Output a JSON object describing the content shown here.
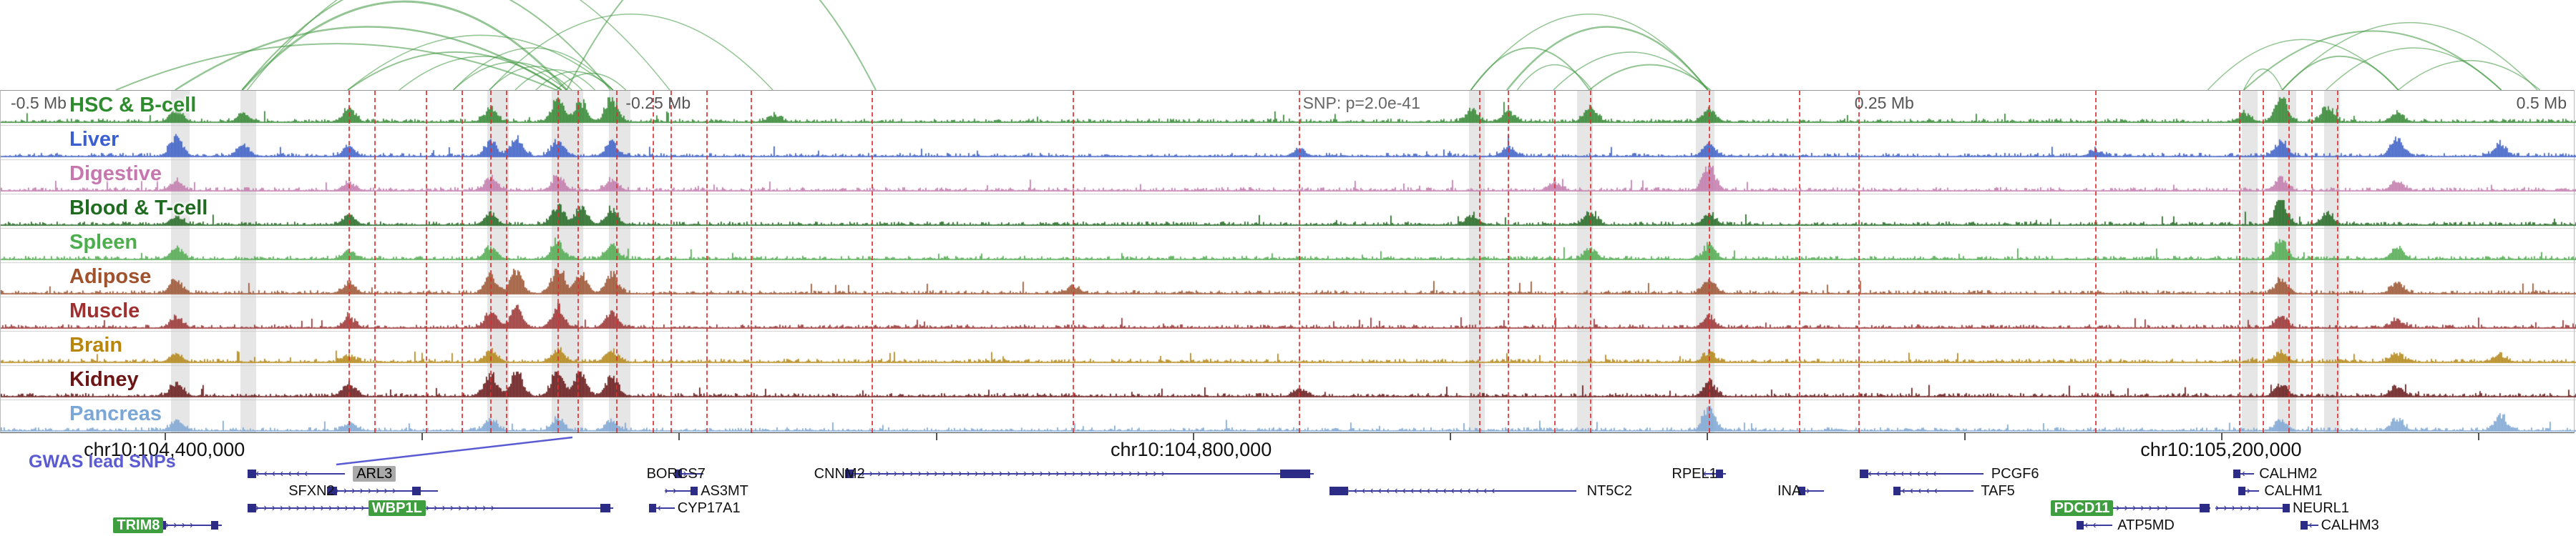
{
  "chart_data": {
    "type": "genome_browser_tracks",
    "region": {
      "chrom": "chr10",
      "window": "chr10:104,300,000-105,300,000"
    },
    "header": {
      "left": "-0.5 Mb",
      "q1": "-0.25 Mb",
      "snp": "SNP: p=2.0e-41",
      "q3": "0.25 Mb",
      "right": "0.5 Mb"
    },
    "axis": {
      "labels": [
        {
          "text": "chr10:104,400,000",
          "x": 0.0638
        },
        {
          "text": "chr10:104,800,000",
          "x": 0.4624
        },
        {
          "text": "chr10:105,200,000",
          "x": 0.8622
        }
      ],
      "minor_ticks": [
        0.0638,
        0.1636,
        0.2634,
        0.3632,
        0.463,
        0.5628,
        0.6626,
        0.7624,
        0.8622,
        0.962
      ]
    },
    "gwas_label": "GWAS lead SNPs",
    "colors": {
      "arc": "#3c963c",
      "snp_line": "#e03030",
      "highlight": "rgba(130,130,130,0.20)",
      "gene": "#3c3c9e",
      "gwas": "#5a5ad2",
      "gene_highlight_box": "#3f9e3f"
    },
    "tracks": [
      {
        "name": "HSC & B-cell",
        "color": "#2e8b2e",
        "seed": 101,
        "peaks": [
          [
            0.068,
            0.45
          ],
          [
            0.094,
            0.3
          ],
          [
            0.135,
            0.5
          ],
          [
            0.19,
            0.5
          ],
          [
            0.216,
            0.85
          ],
          [
            0.225,
            0.7
          ],
          [
            0.237,
            0.9
          ],
          [
            0.3,
            0.25
          ],
          [
            0.571,
            0.45
          ],
          [
            0.585,
            0.35
          ],
          [
            0.617,
            0.55
          ],
          [
            0.663,
            0.5
          ],
          [
            0.871,
            0.3
          ],
          [
            0.885,
            1.0
          ],
          [
            0.903,
            0.5
          ],
          [
            0.93,
            0.35
          ]
        ]
      },
      {
        "name": "Liver",
        "color": "#3a5fd0",
        "seed": 202,
        "peaks": [
          [
            0.068,
            0.75
          ],
          [
            0.094,
            0.4
          ],
          [
            0.135,
            0.35
          ],
          [
            0.19,
            0.55
          ],
          [
            0.2,
            0.7
          ],
          [
            0.216,
            0.6
          ],
          [
            0.237,
            0.5
          ],
          [
            0.504,
            0.25
          ],
          [
            0.585,
            0.35
          ],
          [
            0.663,
            0.45
          ],
          [
            0.813,
            0.2
          ],
          [
            0.885,
            0.55
          ],
          [
            0.93,
            0.65
          ],
          [
            0.97,
            0.45
          ]
        ]
      },
      {
        "name": "Digestive",
        "color": "#c678ae",
        "seed": 303,
        "peaks": [
          [
            0.068,
            0.35
          ],
          [
            0.135,
            0.3
          ],
          [
            0.19,
            0.45
          ],
          [
            0.216,
            0.5
          ],
          [
            0.237,
            0.4
          ],
          [
            0.603,
            0.3
          ],
          [
            0.663,
            0.95
          ],
          [
            0.885,
            0.45
          ],
          [
            0.93,
            0.35
          ]
        ]
      },
      {
        "name": "Blood & T-cell",
        "color": "#1f6b1f",
        "seed": 404,
        "peaks": [
          [
            0.068,
            0.3
          ],
          [
            0.135,
            0.35
          ],
          [
            0.19,
            0.4
          ],
          [
            0.216,
            0.75
          ],
          [
            0.225,
            0.6
          ],
          [
            0.237,
            0.55
          ],
          [
            0.571,
            0.35
          ],
          [
            0.617,
            0.45
          ],
          [
            0.663,
            0.4
          ],
          [
            0.885,
            0.95
          ],
          [
            0.903,
            0.4
          ]
        ]
      },
      {
        "name": "Spleen",
        "color": "#4cae4c",
        "seed": 505,
        "peaks": [
          [
            0.068,
            0.4
          ],
          [
            0.135,
            0.3
          ],
          [
            0.19,
            0.45
          ],
          [
            0.216,
            0.6
          ],
          [
            0.237,
            0.5
          ],
          [
            0.617,
            0.35
          ],
          [
            0.663,
            0.5
          ],
          [
            0.885,
            0.7
          ],
          [
            0.93,
            0.45
          ]
        ]
      },
      {
        "name": "Adipose",
        "color": "#a0522d",
        "seed": 606,
        "peaks": [
          [
            0.068,
            0.5
          ],
          [
            0.135,
            0.4
          ],
          [
            0.19,
            0.65
          ],
          [
            0.2,
            0.8
          ],
          [
            0.216,
            0.9
          ],
          [
            0.225,
            0.75
          ],
          [
            0.237,
            0.7
          ],
          [
            0.416,
            0.25
          ],
          [
            0.663,
            0.5
          ],
          [
            0.885,
            0.5
          ],
          [
            0.93,
            0.4
          ]
        ]
      },
      {
        "name": "Muscle",
        "color": "#a03030",
        "seed": 707,
        "peaks": [
          [
            0.068,
            0.4
          ],
          [
            0.135,
            0.35
          ],
          [
            0.19,
            0.6
          ],
          [
            0.2,
            0.7
          ],
          [
            0.216,
            0.8
          ],
          [
            0.237,
            0.6
          ],
          [
            0.663,
            0.4
          ],
          [
            0.885,
            0.4
          ],
          [
            0.93,
            0.3
          ]
        ]
      },
      {
        "name": "Brain",
        "color": "#b8860b",
        "seed": 808,
        "peaks": [
          [
            0.068,
            0.3
          ],
          [
            0.135,
            0.25
          ],
          [
            0.19,
            0.4
          ],
          [
            0.216,
            0.5
          ],
          [
            0.237,
            0.4
          ],
          [
            0.663,
            0.35
          ],
          [
            0.885,
            0.4
          ],
          [
            0.93,
            0.3
          ],
          [
            0.97,
            0.25
          ]
        ]
      },
      {
        "name": "Kidney",
        "color": "#6b1515",
        "seed": 909,
        "peaks": [
          [
            0.068,
            0.5
          ],
          [
            0.135,
            0.5
          ],
          [
            0.19,
            0.8
          ],
          [
            0.2,
            0.9
          ],
          [
            0.216,
            1.0
          ],
          [
            0.225,
            0.9
          ],
          [
            0.237,
            0.8
          ],
          [
            0.504,
            0.25
          ],
          [
            0.663,
            0.55
          ],
          [
            0.885,
            0.45
          ],
          [
            0.93,
            0.35
          ]
        ]
      },
      {
        "name": "Pancreas",
        "color": "#7ba7d7",
        "seed": 111,
        "peaks": [
          [
            0.068,
            0.35
          ],
          [
            0.135,
            0.3
          ],
          [
            0.19,
            0.4
          ],
          [
            0.216,
            0.45
          ],
          [
            0.237,
            0.35
          ],
          [
            0.663,
            0.85
          ],
          [
            0.885,
            0.4
          ],
          [
            0.93,
            0.45
          ],
          [
            0.97,
            0.55
          ]
        ]
      }
    ],
    "snp_lines": [
      0.135,
      0.145,
      0.165,
      0.179,
      0.19,
      0.196,
      0.216,
      0.224,
      0.239,
      0.253,
      0.26,
      0.274,
      0.291,
      0.338,
      0.416,
      0.504,
      0.574,
      0.585,
      0.603,
      0.617,
      0.663,
      0.698,
      0.721,
      0.813,
      0.869,
      0.878,
      0.888,
      0.897,
      0.907
    ],
    "highlights": [
      {
        "x": 0.066,
        "w": 26
      },
      {
        "x": 0.093,
        "w": 22
      },
      {
        "x": 0.189,
        "w": 30
      },
      {
        "x": 0.214,
        "w": 44
      },
      {
        "x": 0.236,
        "w": 30
      },
      {
        "x": 0.57,
        "w": 22
      },
      {
        "x": 0.612,
        "w": 22
      },
      {
        "x": 0.658,
        "w": 26
      },
      {
        "x": 0.87,
        "w": 22
      },
      {
        "x": 0.884,
        "w": 26
      },
      {
        "x": 0.902,
        "w": 22
      }
    ],
    "arcs": [
      [
        0.045,
        0.216,
        0.55,
        2
      ],
      [
        0.068,
        0.218,
        0.75,
        2.5
      ],
      [
        0.094,
        0.22,
        1.05,
        3
      ],
      [
        0.094,
        0.237,
        1.35,
        2
      ],
      [
        0.135,
        0.218,
        0.45,
        2
      ],
      [
        0.135,
        0.238,
        0.65,
        1.5
      ],
      [
        0.155,
        0.22,
        0.4,
        1.5
      ],
      [
        0.176,
        0.222,
        0.33,
        1.5
      ],
      [
        0.176,
        0.238,
        0.5,
        1.5
      ],
      [
        0.19,
        0.226,
        0.28,
        1.5
      ],
      [
        0.2,
        0.231,
        0.24,
        1.5
      ],
      [
        0.208,
        0.238,
        0.22,
        1.5
      ],
      [
        0.216,
        0.243,
        0.2,
        1.5
      ],
      [
        0.096,
        0.26,
        1.6,
        1.5
      ],
      [
        0.19,
        0.3,
        0.9,
        1.5
      ],
      [
        0.22,
        0.34,
        1.8,
        2
      ],
      [
        0.571,
        0.617,
        0.5,
        2
      ],
      [
        0.585,
        0.663,
        0.75,
        2.5
      ],
      [
        0.603,
        0.663,
        0.45,
        1.5
      ],
      [
        0.571,
        0.663,
        0.9,
        1.5
      ],
      [
        0.617,
        0.664,
        0.3,
        2
      ],
      [
        0.589,
        0.618,
        0.3,
        1.5
      ],
      [
        0.857,
        0.931,
        0.6,
        1.5
      ],
      [
        0.871,
        0.886,
        0.25,
        1.5
      ],
      [
        0.886,
        0.931,
        0.4,
        2
      ],
      [
        0.886,
        0.985,
        0.8,
        1.5
      ],
      [
        0.903,
        0.971,
        0.5,
        1.5
      ],
      [
        0.931,
        0.986,
        0.35,
        1.5
      ],
      [
        0.871,
        0.971,
        0.7,
        2
      ]
    ],
    "genes": {
      "items": [
        {
          "name": "SFXN2",
          "row": 1,
          "label_x": 0.112,
          "style": "plain",
          "dir": "right",
          "body": [
            0.127,
            0.17
          ],
          "exons": [
            {
              "x": 0.127,
              "w": 14
            },
            {
              "x": 0.16,
              "w": 12
            }
          ]
        },
        {
          "name": "ARL3",
          "row": 0,
          "label_x": 0.137,
          "style": "graybox",
          "dir": "left",
          "body": [
            0.096,
            0.134
          ],
          "exons": [
            {
              "x": 0.096,
              "w": 12
            }
          ]
        },
        {
          "name": "TRIM8",
          "row": 3,
          "label_x": 0.044,
          "style": "greenbox",
          "dir": "right",
          "body": [
            0.061,
            0.086
          ],
          "exons": [
            {
              "x": 0.061,
              "w": 12
            },
            {
              "x": 0.082,
              "w": 10
            }
          ]
        },
        {
          "name": "WBP1L",
          "row": 2,
          "label_x": 0.143,
          "style": "greenbox",
          "dir": "right",
          "body": [
            0.096,
            0.238
          ],
          "exons": [
            {
              "x": 0.096,
              "w": 12
            },
            {
              "x": 0.233,
              "w": 14
            }
          ]
        },
        {
          "name": "BORCS7",
          "row": 0,
          "label_x": 0.251,
          "style": "plain",
          "dir": "right",
          "body": [
            0.262,
            0.273
          ],
          "exons": [
            {
              "x": 0.262,
              "w": 10
            }
          ]
        },
        {
          "name": "AS3MT",
          "row": 1,
          "label_x": 0.272,
          "style": "plain",
          "dir": "right",
          "body": [
            0.258,
            0.27
          ],
          "exons": [
            {
              "x": 0.268,
              "w": 10
            }
          ]
        },
        {
          "name": "CYP17A1",
          "row": 2,
          "label_x": 0.263,
          "style": "plain",
          "dir": "left",
          "body": [
            0.252,
            0.262
          ],
          "exons": [
            {
              "x": 0.252,
              "w": 10
            }
          ]
        },
        {
          "name": "CNNM2",
          "row": 0,
          "label_x": 0.316,
          "style": "plain",
          "dir": "right",
          "body": [
            0.328,
            0.51
          ],
          "exons": [
            {
              "x": 0.328,
              "w": 12
            },
            {
              "x": 0.497,
              "w": 42
            }
          ]
        },
        {
          "name": "NT5C2",
          "row": 1,
          "label_x": 0.616,
          "style": "plain",
          "dir": "left",
          "body": [
            0.516,
            0.612
          ],
          "exons": [
            {
              "x": 0.516,
              "w": 26
            }
          ]
        },
        {
          "name": "RPEL1",
          "row": 0,
          "label_x": 0.649,
          "style": "plain",
          "dir": "left",
          "body": [
            0.661,
            0.67
          ],
          "exons": [
            {
              "x": 0.666,
              "w": 10
            }
          ]
        },
        {
          "name": "INA",
          "row": 1,
          "label_x": 0.69,
          "style": "plain",
          "dir": "right",
          "body": [
            0.698,
            0.708
          ],
          "exons": [
            {
              "x": 0.698,
              "w": 10
            }
          ]
        },
        {
          "name": "PCGF6",
          "row": 0,
          "label_x": 0.773,
          "style": "plain",
          "dir": "left",
          "body": [
            0.722,
            0.77
          ],
          "exons": [
            {
              "x": 0.722,
              "w": 12
            }
          ]
        },
        {
          "name": "TAF5",
          "row": 1,
          "label_x": 0.769,
          "style": "plain",
          "dir": "left",
          "body": [
            0.735,
            0.766
          ],
          "exons": [
            {
              "x": 0.735,
              "w": 10
            }
          ]
        },
        {
          "name": "PDCD11",
          "row": 2,
          "label_x": 0.796,
          "style": "greenbox",
          "dir": "right",
          "body": [
            0.812,
            0.858
          ],
          "exons": [
            {
              "x": 0.854,
              "w": 14
            }
          ]
        },
        {
          "name": "ATP5MD",
          "row": 3,
          "label_x": 0.822,
          "style": "plain",
          "dir": "left",
          "body": [
            0.806,
            0.82
          ],
          "exons": [
            {
              "x": 0.806,
              "w": 10
            }
          ]
        },
        {
          "name": "CALHM2",
          "row": 0,
          "label_x": 0.877,
          "style": "plain",
          "dir": "left",
          "body": [
            0.867,
            0.875
          ],
          "exons": [
            {
              "x": 0.867,
              "w": 10
            }
          ]
        },
        {
          "name": "CALHM1",
          "row": 1,
          "label_x": 0.879,
          "style": "plain",
          "dir": "right",
          "body": [
            0.869,
            0.877
          ],
          "exons": [
            {
              "x": 0.869,
              "w": 10
            }
          ]
        },
        {
          "name": "NEURL1",
          "row": 2,
          "label_x": 0.89,
          "style": "plain",
          "dir": "right",
          "body": [
            0.86,
            0.888
          ],
          "exons": [
            {
              "x": 0.886,
              "w": 10
            }
          ]
        },
        {
          "name": "CALHM3",
          "row": 3,
          "label_x": 0.901,
          "style": "plain",
          "dir": "left",
          "body": [
            0.893,
            0.9
          ],
          "exons": [
            {
              "x": 0.893,
              "w": 10
            }
          ]
        }
      ]
    }
  }
}
